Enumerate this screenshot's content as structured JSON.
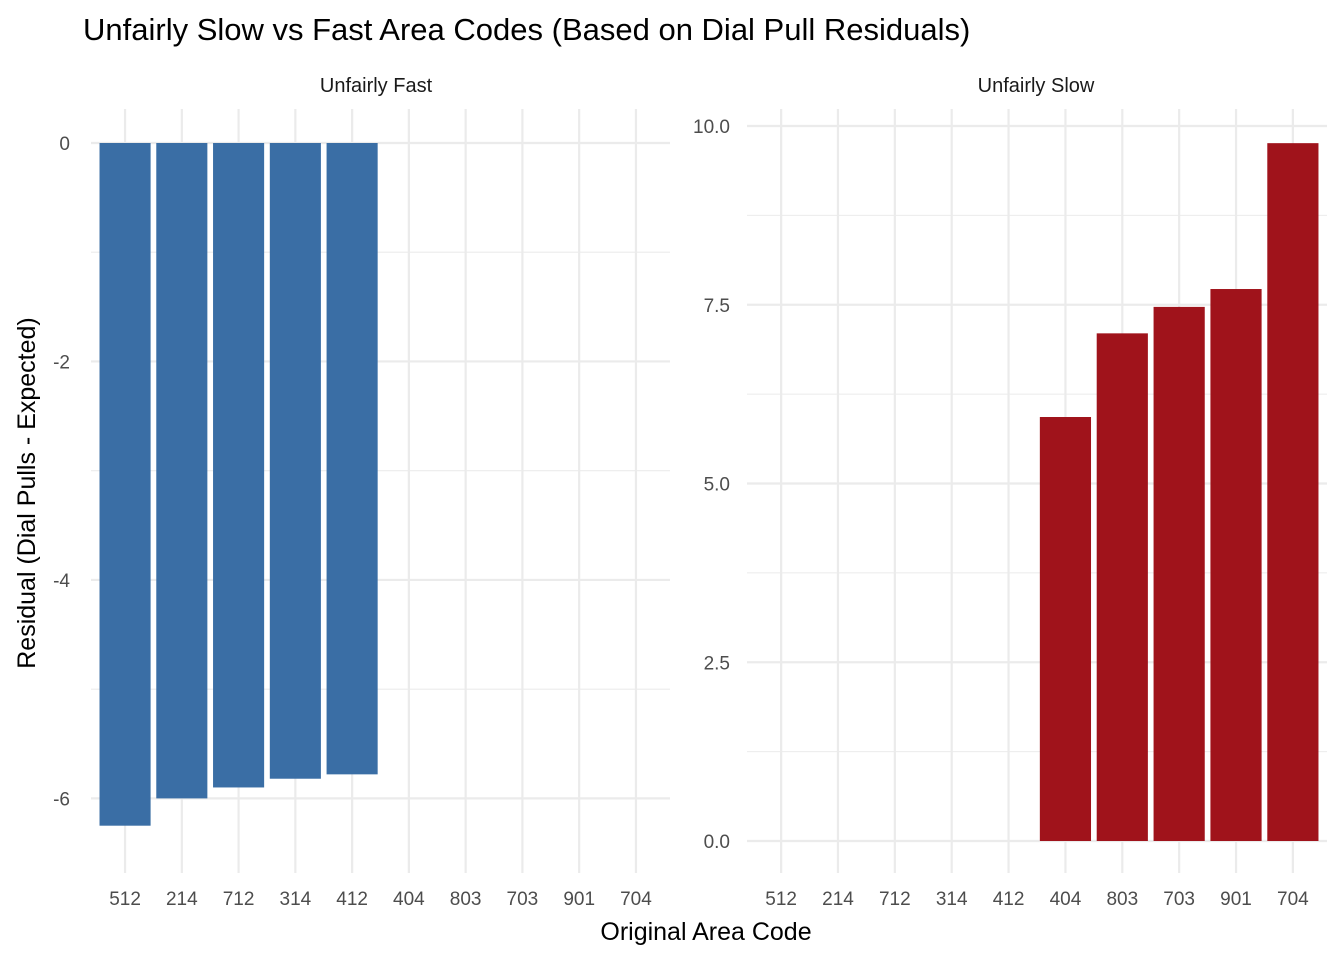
{
  "chart_data": {
    "type": "bar",
    "title": "Unfairly Slow vs Fast Area Codes (Based on Dial Pull Residuals)",
    "xlabel": "Original Area Code",
    "ylabel": "Residual (Dial Pulls - Expected)",
    "categories": [
      "512",
      "214",
      "712",
      "314",
      "412",
      "404",
      "803",
      "703",
      "901",
      "704"
    ],
    "grid": true,
    "legend": "none",
    "panels": [
      {
        "name": "Unfairly Fast",
        "color": "#3A6EA5",
        "ylim": [
          -6.5,
          0
        ],
        "yticks": [
          0,
          -2,
          -4,
          -6
        ],
        "ytick_labels": [
          "0",
          "-2",
          "-4",
          "-6"
        ],
        "values": [
          -6.25,
          -6.0,
          -5.9,
          -5.82,
          -5.78,
          null,
          null,
          null,
          null,
          null
        ]
      },
      {
        "name": "Unfairly Slow",
        "color": "#A0131B",
        "ylim": [
          0,
          10
        ],
        "yticks": [
          0,
          2.5,
          5,
          7.5,
          10
        ],
        "ytick_labels": [
          "0.0",
          "2.5",
          "5.0",
          "7.5",
          "10.0"
        ],
        "values": [
          null,
          null,
          null,
          null,
          null,
          5.93,
          7.1,
          7.47,
          7.72,
          9.76
        ]
      }
    ]
  }
}
